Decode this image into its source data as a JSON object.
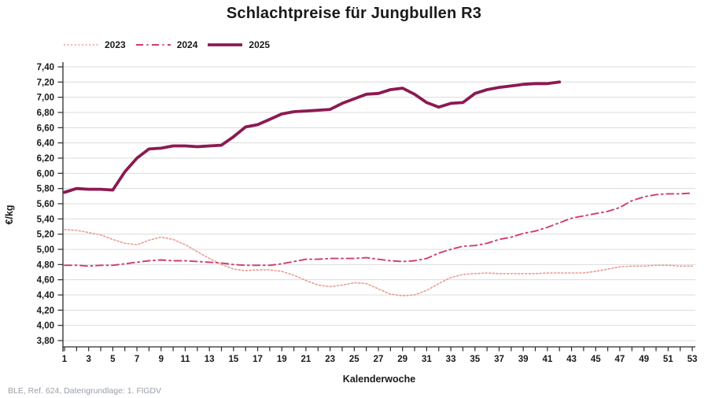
{
  "title": "Schlachtpreise für Jungbullen R3",
  "footer": "BLE, Ref. 624, Datengrundlage: 1. FlGDV",
  "chart_data": {
    "type": "line",
    "title": "Schlachtpreise für Jungbullen R3",
    "xlabel": "Kalenderwoche",
    "ylabel": "€/kg",
    "x_unit": "Kalenderwoche",
    "x_range": [
      1,
      53
    ],
    "x_tick_labels": [
      1,
      3,
      5,
      7,
      9,
      11,
      13,
      15,
      17,
      19,
      21,
      23,
      25,
      27,
      29,
      31,
      33,
      35,
      37,
      39,
      41,
      43,
      45,
      47,
      49,
      51,
      53
    ],
    "ylim": [
      3.8,
      7.4
    ],
    "y_tick_step": 0.2,
    "y_tick_labels": [
      "3,80",
      "4,00",
      "4,20",
      "4,40",
      "4,60",
      "4,80",
      "5,00",
      "5,20",
      "5,40",
      "5,60",
      "5,80",
      "6,00",
      "6,20",
      "6,40",
      "6,60",
      "6,80",
      "7,00",
      "7,20",
      "7,40"
    ],
    "grid": true,
    "legend_position": "top-left",
    "colors": {
      "grid": "#dcdcdc",
      "axis": "#2b2b2b",
      "series2023": "#eb9b90",
      "series2024": "#d13c6e",
      "series2025": "#8b1a52"
    },
    "series": [
      {
        "name": "2023",
        "style": "dotted",
        "color": "#eb9b90",
        "width": 1.6,
        "dash": "2 2.6",
        "start_week": 1,
        "values": [
          5.26,
          5.25,
          5.22,
          5.19,
          5.13,
          5.08,
          5.06,
          5.12,
          5.16,
          5.13,
          5.06,
          4.97,
          4.88,
          4.8,
          4.74,
          4.72,
          4.73,
          4.73,
          4.71,
          4.66,
          4.59,
          4.53,
          4.51,
          4.53,
          4.56,
          4.55,
          4.48,
          4.41,
          4.39,
          4.4,
          4.46,
          4.55,
          4.63,
          4.67,
          4.68,
          4.69,
          4.68,
          4.68,
          4.68,
          4.68,
          4.69,
          4.69,
          4.69,
          4.69,
          4.71,
          4.74,
          4.77,
          4.78,
          4.78,
          4.79,
          4.79,
          4.78,
          4.78
        ]
      },
      {
        "name": "2024",
        "style": "dashdot",
        "color": "#d13c6e",
        "width": 1.9,
        "dash": "9 4.5 2 4.5",
        "start_week": 1,
        "values": [
          4.79,
          4.79,
          4.78,
          4.79,
          4.79,
          4.81,
          4.83,
          4.85,
          4.86,
          4.85,
          4.85,
          4.84,
          4.83,
          4.82,
          4.8,
          4.79,
          4.79,
          4.79,
          4.81,
          4.84,
          4.87,
          4.87,
          4.88,
          4.88,
          4.88,
          4.89,
          4.87,
          4.85,
          4.84,
          4.85,
          4.88,
          4.95,
          5.0,
          5.04,
          5.05,
          5.08,
          5.13,
          5.16,
          5.21,
          5.24,
          5.29,
          5.35,
          5.41,
          5.44,
          5.47,
          5.5,
          5.55,
          5.64,
          5.69,
          5.72,
          5.73,
          5.73,
          5.74
        ]
      },
      {
        "name": "2025",
        "style": "solid",
        "color": "#8b1a52",
        "width": 3.8,
        "dash": "",
        "start_week": 1,
        "values": [
          5.75,
          5.8,
          5.79,
          5.79,
          5.78,
          6.02,
          6.2,
          6.32,
          6.33,
          6.36,
          6.36,
          6.35,
          6.36,
          6.37,
          6.48,
          6.61,
          6.64,
          6.71,
          6.78,
          6.81,
          6.82,
          6.83,
          6.84,
          6.92,
          6.98,
          7.04,
          7.05,
          7.1,
          7.12,
          7.04,
          6.93,
          6.87,
          6.92,
          6.93,
          7.05,
          7.1,
          7.13,
          7.15,
          7.17,
          7.18,
          7.18,
          7.2
        ]
      }
    ]
  }
}
